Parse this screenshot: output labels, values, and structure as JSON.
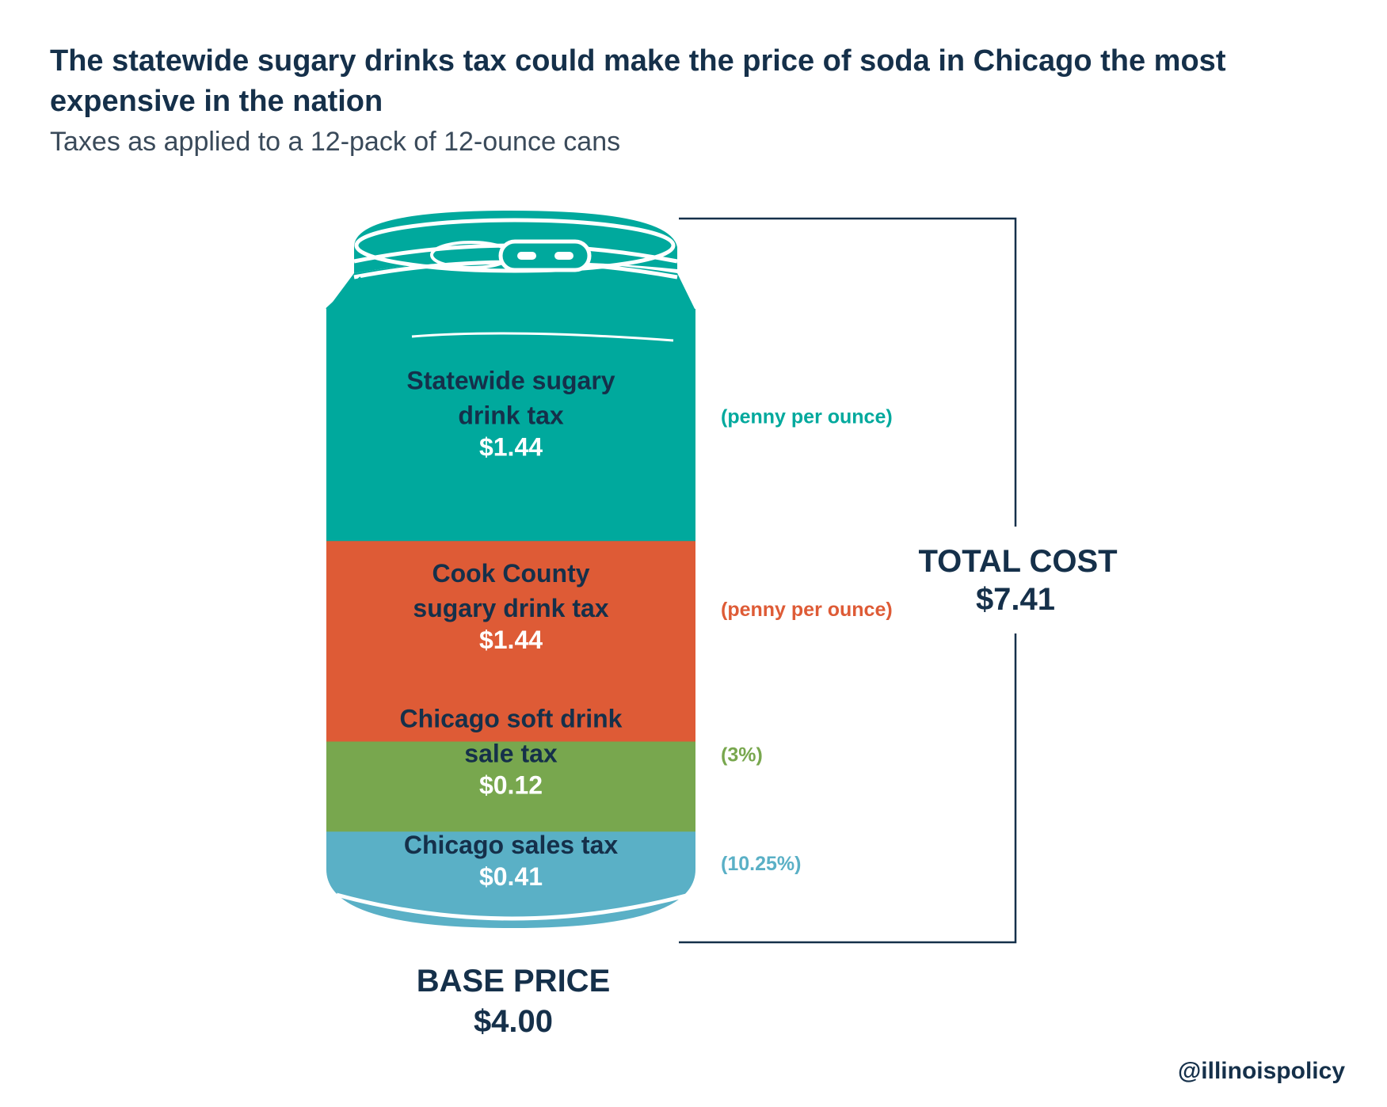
{
  "title": "The statewide sugary drinks tax could make the price of soda in Chicago the most expensive in the nation",
  "subtitle": "Taxes as applied to a 12-pack of 12-ounce cans",
  "chart_data": {
    "type": "bar",
    "orientation": "stacked-vertical",
    "categories": [
      "Chicago sales tax",
      "Chicago soft drink sale tax",
      "Cook County sugary drink tax",
      "Statewide sugary drink tax"
    ],
    "segments": [
      {
        "label_lines": [
          "Chicago sales tax"
        ],
        "value": 0.41,
        "value_text": "$0.41",
        "note": "(10.25%)",
        "color": "#5ab0c6"
      },
      {
        "label_lines": [
          "Chicago soft drink",
          "sale tax"
        ],
        "value": 0.12,
        "value_text": "$0.12",
        "note": "(3%)",
        "color": "#78a74e"
      },
      {
        "label_lines": [
          "Cook County",
          "sugary drink tax"
        ],
        "value": 1.44,
        "value_text": "$1.44",
        "note": "(penny per ounce)",
        "color": "#de5b36"
      },
      {
        "label_lines": [
          "Statewide sugary",
          "drink tax"
        ],
        "value": 1.44,
        "value_text": "$1.44",
        "note": "(penny per ounce)",
        "color": "#00a99d"
      }
    ],
    "base_price": {
      "label": "BASE PRICE",
      "value": 4.0,
      "value_text": "$4.00"
    },
    "total_cost": {
      "label": "TOTAL COST",
      "value": 7.41,
      "value_text": "$7.41"
    }
  },
  "credit": "@illinoispolicy"
}
